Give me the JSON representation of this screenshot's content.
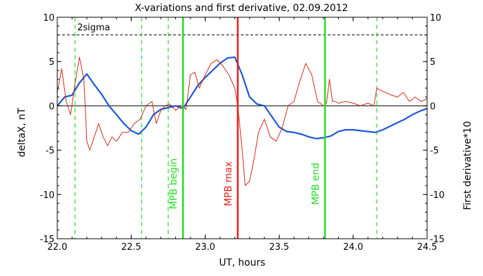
{
  "chart_data": {
    "type": "line",
    "title": "X-variations and first derivative, 02.09.2012",
    "xlabel": "UT, hours",
    "ylabel_left": "deltaX, nT",
    "ylabel_right": "First derivative*10",
    "xlim": [
      22.0,
      24.5
    ],
    "ylim": [
      -15,
      10
    ],
    "x_ticks": [
      22.0,
      22.5,
      23.0,
      23.5,
      24.0,
      24.5
    ],
    "x_tick_labels": [
      "22.0",
      "22.5",
      "23.0",
      "23.5",
      "24.0",
      "24.5"
    ],
    "y_ticks": [
      10,
      5,
      0,
      -5,
      -10,
      -15
    ],
    "y_tick_labels": [
      "10",
      "5",
      "0",
      "-5",
      "-10",
      "-15"
    ],
    "grid": false,
    "colors": {
      "deltax": "#1a56d6",
      "derivative": "#cc2a18",
      "mpb": "#22dd22",
      "mpb_max": "#e8201a",
      "threshold": "#000000"
    },
    "threshold": {
      "label": "2sigma",
      "y": 8
    },
    "zero_line": 0,
    "markers_dashed": [
      22.12,
      22.57,
      22.75,
      24.16
    ],
    "markers_solid": [
      {
        "x": 22.85,
        "label": "MPB begin",
        "color": "#22dd22"
      },
      {
        "x": 23.22,
        "label": "MPB max",
        "color": "#e8201a"
      },
      {
        "x": 23.81,
        "label": "MPB end",
        "color": "#22dd22"
      }
    ],
    "series": [
      {
        "key": "deltax",
        "x": [
          22.0,
          22.05,
          22.1,
          22.15,
          22.2,
          22.25,
          22.3,
          22.35,
          22.4,
          22.45,
          22.5,
          22.55,
          22.6,
          22.65,
          22.7,
          22.75,
          22.8,
          22.85,
          22.9,
          22.95,
          23.0,
          23.05,
          23.1,
          23.15,
          23.2,
          23.25,
          23.3,
          23.35,
          23.4,
          23.45,
          23.5,
          23.55,
          23.6,
          23.65,
          23.7,
          23.75,
          23.8,
          23.85,
          23.9,
          23.95,
          24.0,
          24.05,
          24.1,
          24.15,
          24.2,
          24.25,
          24.3,
          24.35,
          24.4,
          24.45,
          24.5
        ],
        "values": [
          0.0,
          1.0,
          1.2,
          2.6,
          3.6,
          2.4,
          1.3,
          0.0,
          -1.0,
          -2.0,
          -2.8,
          -3.2,
          -2.4,
          -1.0,
          -0.4,
          -0.2,
          0.0,
          -0.3,
          1.0,
          2.3,
          3.2,
          4.0,
          4.8,
          5.4,
          5.5,
          3.5,
          1.0,
          0.2,
          0.0,
          -1.2,
          -2.4,
          -2.9,
          -3.0,
          -3.2,
          -3.5,
          -3.7,
          -3.6,
          -3.4,
          -2.9,
          -2.7,
          -2.7,
          -2.8,
          -2.9,
          -3.0,
          -2.7,
          -2.3,
          -1.9,
          -1.5,
          -1.0,
          -0.6,
          -0.3
        ]
      },
      {
        "key": "derivative",
        "x": [
          22.0,
          22.03,
          22.06,
          22.09,
          22.12,
          22.15,
          22.18,
          22.2,
          22.22,
          22.25,
          22.28,
          22.31,
          22.34,
          22.37,
          22.4,
          22.44,
          22.48,
          22.52,
          22.56,
          22.6,
          22.64,
          22.67,
          22.7,
          22.73,
          22.76,
          22.8,
          22.84,
          22.87,
          22.9,
          22.93,
          22.96,
          23.0,
          23.04,
          23.08,
          23.12,
          23.16,
          23.2,
          23.22,
          23.25,
          23.27,
          23.3,
          23.33,
          23.36,
          23.4,
          23.44,
          23.48,
          23.52,
          23.56,
          23.6,
          23.64,
          23.68,
          23.72,
          23.76,
          23.8,
          23.82,
          23.84,
          23.86,
          23.88,
          23.9,
          23.95,
          24.0,
          24.05,
          24.1,
          24.14,
          24.16,
          24.18,
          24.22,
          24.26,
          24.3,
          24.34,
          24.38,
          24.42,
          24.46,
          24.5
        ],
        "values": [
          1.5,
          4.2,
          0.5,
          -1.0,
          2.5,
          5.5,
          3.0,
          -4.0,
          -5.0,
          -3.5,
          -2.0,
          -3.5,
          -4.5,
          -3.5,
          -4.0,
          -3.0,
          -3.0,
          -2.0,
          -1.5,
          0.0,
          0.5,
          -2.0,
          -0.5,
          0.0,
          0.2,
          -0.5,
          0.0,
          -0.4,
          3.5,
          3.8,
          2.0,
          3.5,
          4.8,
          5.2,
          4.5,
          3.5,
          2.0,
          0.0,
          -5.0,
          -9.0,
          -8.5,
          -6.0,
          -3.0,
          -1.5,
          -3.5,
          -4.0,
          -2.5,
          0.0,
          0.5,
          2.8,
          4.8,
          3.5,
          0.5,
          0.0,
          0.3,
          3.0,
          0.5,
          0.5,
          0.3,
          0.5,
          0.3,
          0.0,
          0.3,
          0.0,
          2.0,
          1.8,
          1.5,
          1.2,
          1.0,
          1.5,
          0.5,
          1.0,
          0.5,
          0.8
        ]
      }
    ]
  }
}
